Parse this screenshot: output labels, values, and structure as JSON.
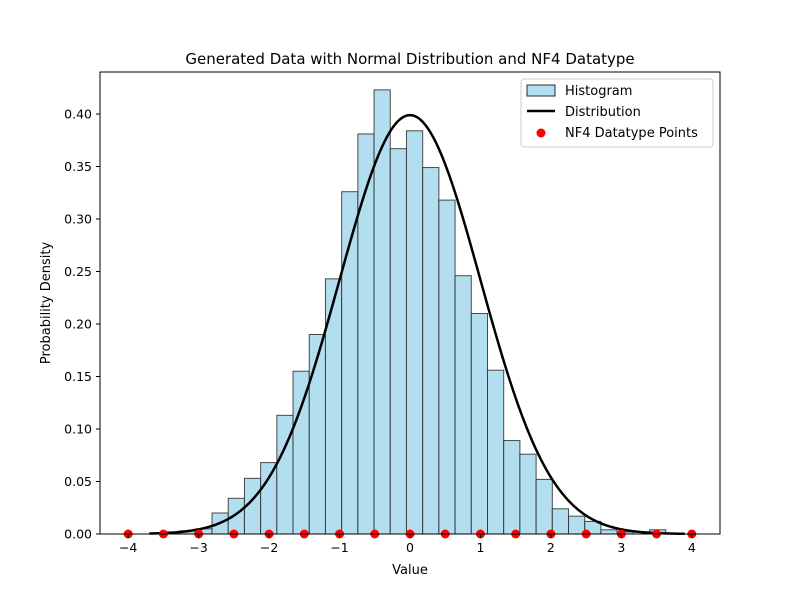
{
  "chart_data": {
    "type": "bar",
    "title": "Generated Data with Normal Distribution and NF4 Datatype",
    "xlabel": "Value",
    "ylabel": "Probability Density",
    "xlim": [
      -4.4,
      4.4
    ],
    "ylim": [
      0,
      0.44
    ],
    "x_ticks": [
      -4,
      -3,
      -2,
      -1,
      0,
      1,
      2,
      3,
      4
    ],
    "x_tick_labels": [
      "−4",
      "−3",
      "−2",
      "−1",
      "0",
      "1",
      "2",
      "3",
      "4"
    ],
    "y_ticks": [
      0,
      0.05,
      0.1,
      0.15,
      0.2,
      0.25,
      0.3,
      0.35,
      0.4
    ],
    "y_tick_labels": [
      "0.00",
      "0.05",
      "0.10",
      "0.15",
      "0.20",
      "0.25",
      "0.30",
      "0.35",
      "0.40"
    ],
    "grid": false,
    "legend_position": "top-right",
    "colors": {
      "histogram_fill": "#b3def0",
      "histogram_edge": "#2b2b2b",
      "distribution": "#000000",
      "points": "#ff0000"
    },
    "histogram": {
      "name": "Histogram",
      "bin_edges": [
        -3.5,
        -3.27,
        -3.04,
        -2.81,
        -2.58,
        -2.35,
        -2.12,
        -1.89,
        -1.66,
        -1.43,
        -1.2,
        -0.97,
        -0.74,
        -0.51,
        -0.28,
        -0.05,
        0.18,
        0.41,
        0.64,
        0.87,
        1.1,
        1.33,
        1.56,
        1.79,
        2.02,
        2.25,
        2.48,
        2.71,
        2.94,
        3.17,
        3.4,
        3.63
      ],
      "densities": [
        0.002,
        0.003,
        0.005,
        0.02,
        0.034,
        0.053,
        0.068,
        0.113,
        0.155,
        0.19,
        0.243,
        0.326,
        0.381,
        0.423,
        0.367,
        0.384,
        0.349,
        0.318,
        0.246,
        0.21,
        0.156,
        0.089,
        0.076,
        0.052,
        0.024,
        0.017,
        0.012,
        0.004,
        0.002,
        0.0,
        0.004
      ]
    },
    "distribution": {
      "name": "Distribution",
      "mean": 0,
      "std": 1,
      "x_range": [
        -3.7,
        3.9
      ]
    },
    "points": {
      "name": "NF4 Datatype Points",
      "x": [
        -4,
        -3.5,
        -3,
        -2.5,
        -2,
        -1.5,
        -1,
        -0.5,
        0,
        0.5,
        1,
        1.5,
        2,
        2.5,
        3,
        3.5,
        4
      ],
      "y": [
        0,
        0,
        0,
        0,
        0,
        0,
        0,
        0,
        0,
        0,
        0,
        0,
        0,
        0,
        0,
        0,
        0
      ]
    }
  }
}
